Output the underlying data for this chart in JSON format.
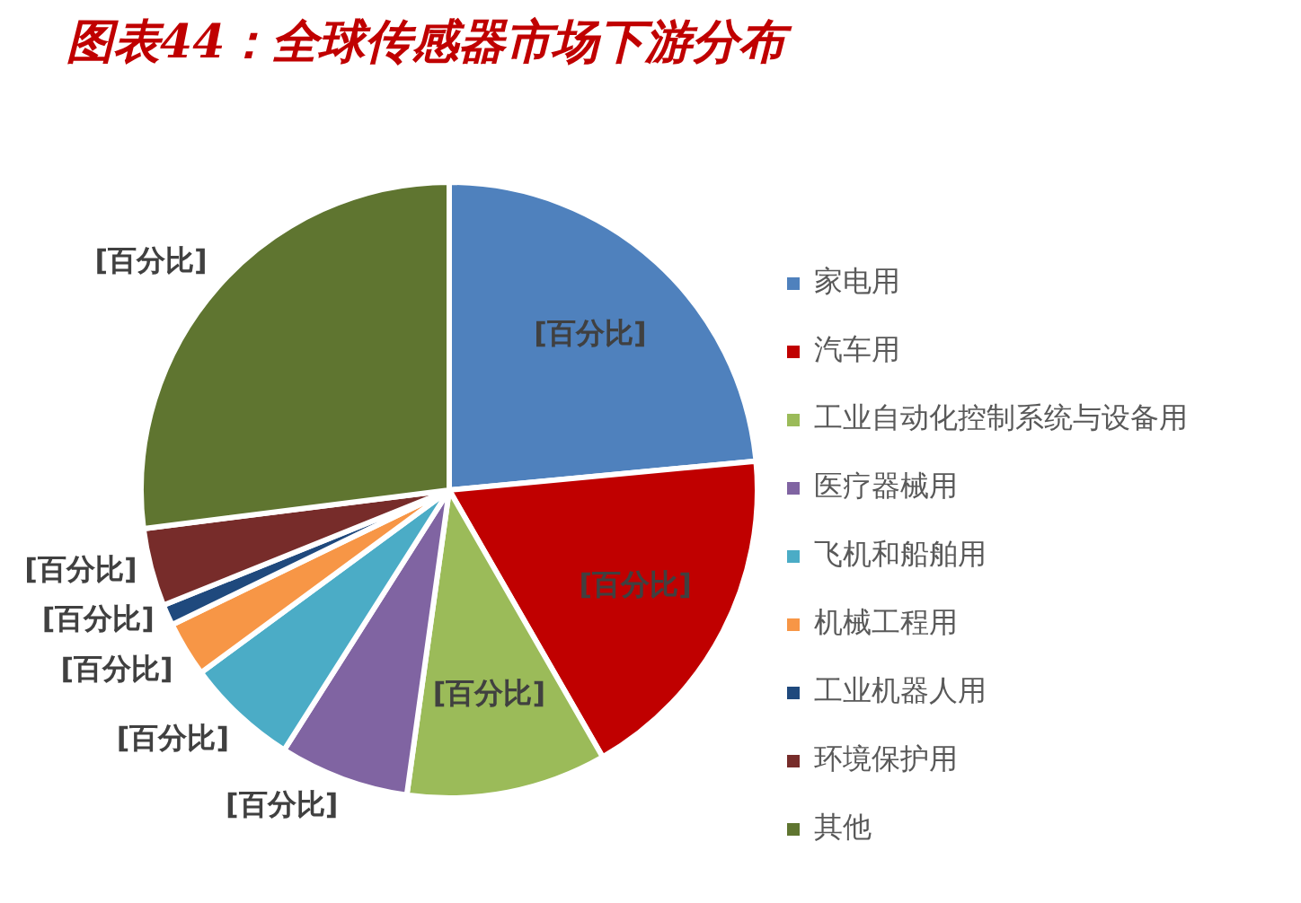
{
  "chart_data": {
    "type": "pie",
    "title": "图表44：全球传感器市场下游分布",
    "categories": [
      "家电用",
      "汽车用",
      "工业自动化控制系统与设备用",
      "医疗器械用",
      "飞机和船舶用",
      "机械工程用",
      "工业机器人用",
      "环境保护用",
      "其他"
    ],
    "values": [
      23.5,
      18.2,
      10.5,
      6.8,
      5.9,
      2.9,
      1.1,
      4.1,
      27.0
    ],
    "colors": [
      "#4f81bd",
      "#c00000",
      "#9bbb59",
      "#8064a2",
      "#4bacc6",
      "#f79646",
      "#1f497d",
      "#772c2a",
      "#5f7530"
    ],
    "value_labels": [
      "[百分比]",
      "[百分比]",
      "[百分比]",
      "[百分比]",
      "[百分比]",
      "[百分比]",
      "[百分比]",
      "[百分比]",
      "[百分比]"
    ],
    "legend": "right"
  }
}
